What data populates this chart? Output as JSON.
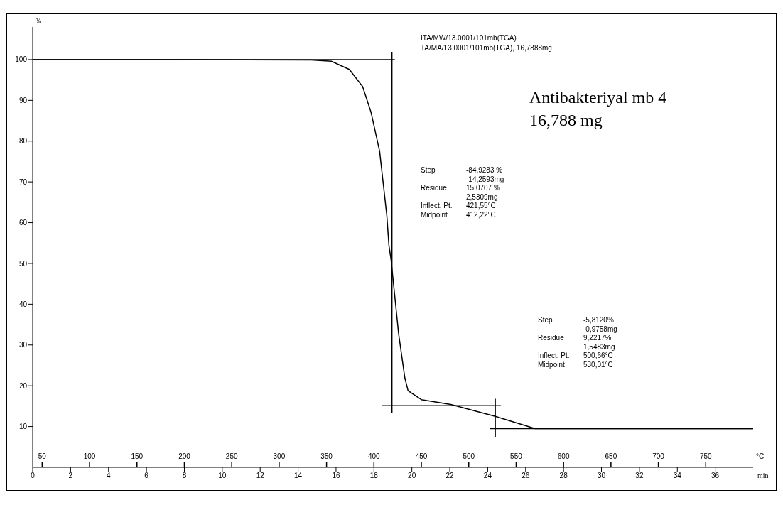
{
  "chart_data": {
    "type": "line",
    "xlabel": "min",
    "x2label": "°C",
    "ylabel": "%",
    "xlim": [
      0,
      38
    ],
    "xticks": [
      0,
      2,
      4,
      6,
      8,
      10,
      12,
      14,
      16,
      18,
      20,
      22,
      24,
      26,
      28,
      30,
      32,
      34,
      36
    ],
    "x2lim": [
      40,
      800
    ],
    "x2ticks": [
      50,
      100,
      150,
      200,
      250,
      300,
      350,
      400,
      450,
      500,
      550,
      600,
      650,
      700,
      750
    ],
    "ylim": [
      0,
      108
    ],
    "yticks": [
      10,
      20,
      30,
      40,
      50,
      60,
      70,
      80,
      90,
      100
    ],
    "series": [
      {
        "color": "#000000",
        "x": [
          0,
          7.5,
          14.7,
          15.75,
          16.7,
          17.4,
          17.84,
          18.3,
          18.68,
          18.79,
          18.9,
          19.3,
          19.63,
          19.8,
          20.5,
          22.05,
          24.4,
          26.5,
          38
        ],
        "values": [
          100,
          100,
          99.9,
          99.6,
          97.6,
          93.4,
          87.2,
          77.5,
          61.7,
          54.4,
          51,
          32.8,
          21.9,
          18.8,
          16.6,
          15.4,
          12.5,
          9.5,
          9.5
        ]
      },
      {
        "color": "#000000",
        "x": [
          0,
          19.1
        ],
        "values": [
          100,
          100
        ]
      },
      {
        "color": "#000000",
        "x": [
          18.95,
          18.95
        ],
        "values": [
          101.9,
          13.4
        ]
      },
      {
        "color": "#000000",
        "x": [
          18.4,
          24.7
        ],
        "values": [
          15.1,
          15.1
        ]
      },
      {
        "color": "#000000",
        "x": [
          24.4,
          24.4
        ],
        "values": [
          16.8,
          7.3
        ]
      },
      {
        "color": "#000000",
        "x": [
          24.1,
          38
        ],
        "values": [
          9.5,
          9.5
        ]
      }
    ],
    "annotations": [
      "ITA/MW/13.0001/101mb(TGA)",
      "TA/MA/13.0001/101mb(TGA), 16,7888mg",
      "Antibakteriyal mb 4",
      "16,788 mg",
      "Step\t-84,9283 %\n\t-14,2593mg\nResidue\t15,0707 %\n\t2,5309mg\nInflect. Pt.\t421,55°C\nMidpoint\t412,22°C",
      "Step\t-5,8120%\n\t-0,9758mg\nResidue\t9,2217%\n\t1,5483mg\nInflect. Pt.\t500,66°C\nMidpoint\t530,01°C"
    ]
  }
}
